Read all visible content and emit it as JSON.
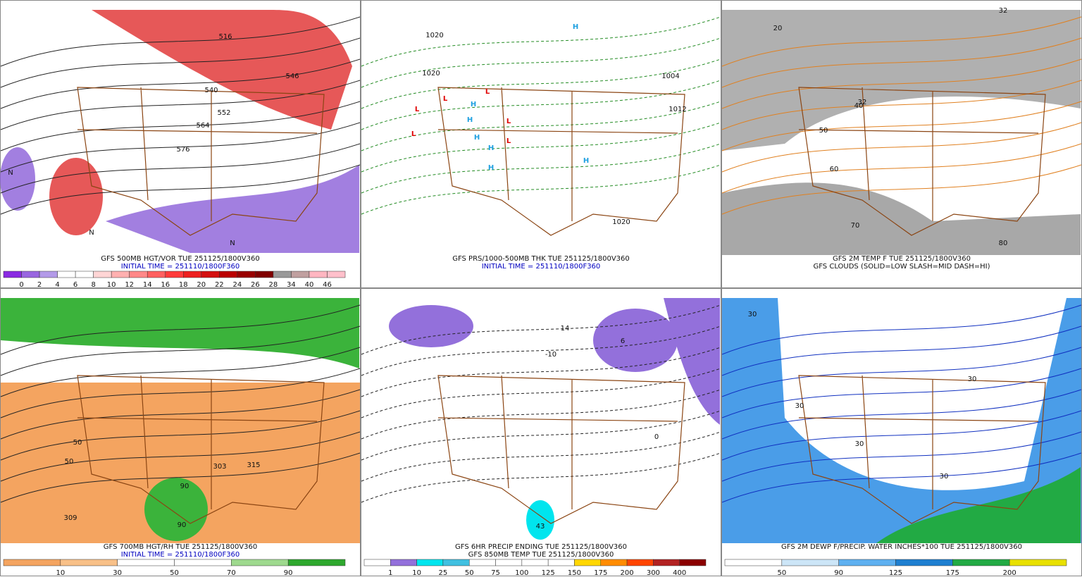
{
  "panels": [
    {
      "captions": [
        "GFS 500MB HGT/VOR TUE 251125/1800V360",
        "INITIAL TIME = 251110/1800F360"
      ],
      "annotations": [
        "540",
        "552",
        "564",
        "576",
        "546",
        "516",
        "N",
        "N",
        "N"
      ],
      "colorbar": {
        "labels": [
          "0",
          "2",
          "4",
          "6",
          "8",
          "10",
          "12",
          "14",
          "16",
          "18",
          "20",
          "22",
          "24",
          "26",
          "28",
          "34",
          "40",
          "46"
        ],
        "colors": [
          "#8a2be2",
          "#9966e0",
          "#b39ae8",
          "#ffffff",
          "#ffffff",
          "#ffd5d5",
          "#ffb0b0",
          "#ff8888",
          "#ff6060",
          "#ff3b3b",
          "#ee2020",
          "#d41010",
          "#bb0000",
          "#990000",
          "#800000",
          "#999999",
          "#c0a0a0",
          "#ffb6c1",
          "#ffc0cb"
        ]
      }
    },
    {
      "captions": [
        "GFS PRS/1000-500MB THK TUE 251125/1800V360",
        "INITIAL TIME = 251110/1800F360"
      ],
      "annotations": [
        "1020",
        "1020",
        "1004",
        "1012",
        "1020",
        "L",
        "L",
        "L",
        "L",
        "L",
        "L",
        "H",
        "H",
        "H",
        "H",
        "H",
        "H",
        "H"
      ]
    },
    {
      "captions": [
        "GFS 2M TEMP F TUE 251125/1800V360",
        "GFS CLOUDS (SOLID=LOW SLASH=MID DASH=HI)"
      ],
      "annotations": [
        "32",
        "40",
        "50",
        "60",
        "70",
        "80",
        "20",
        "32"
      ]
    },
    {
      "captions": [
        "GFS 700MB HGT/RH TUE 251125/1800V360",
        "INITIAL TIME = 251110/1800F360"
      ],
      "annotations": [
        "303",
        "309",
        "315",
        "50",
        "50",
        "90",
        "90"
      ],
      "colorbar": {
        "labels": [
          "10",
          "30",
          "50",
          "70",
          "90"
        ],
        "colors": [
          "#f4a460",
          "#f8c088",
          "#ffffff",
          "#ffffff",
          "#9ed98e",
          "#2ea82e"
        ]
      }
    },
    {
      "captions": [
        "GFS 6HR PRECIP ENDING TUE 251125/1800V360",
        "GFS 850MB TEMP TUE 251125/1800V360"
      ],
      "annotations": [
        "-10",
        "14",
        "6",
        "43",
        "0"
      ],
      "colorbar": {
        "labels": [
          "1",
          "10",
          "25",
          "50",
          "75",
          "100",
          "125",
          "150",
          "175",
          "200",
          "300",
          "400"
        ],
        "colors": [
          "#ffffff",
          "#9370db",
          "#00e5ee",
          "#40c0e0",
          "#ffffff",
          "#ffffff",
          "#ffffff",
          "#ffffff",
          "#ffd700",
          "#ff8c00",
          "#ff4500",
          "#b22222",
          "#8b0000"
        ]
      }
    },
    {
      "captions": [
        "GFS 2M DEWP F/PRECIP. WATER INCHES*100 TUE 251125/1800V360"
      ],
      "annotations": [
        "30",
        "30",
        "30",
        "30",
        "30"
      ],
      "colorbar": {
        "labels": [
          "50",
          "90",
          "125",
          "175",
          "200"
        ],
        "colors": [
          "#ffffff",
          "#cce5f7",
          "#5eb0f0",
          "#1e7fd0",
          "#22aa44",
          "#e8e000"
        ]
      }
    }
  ]
}
